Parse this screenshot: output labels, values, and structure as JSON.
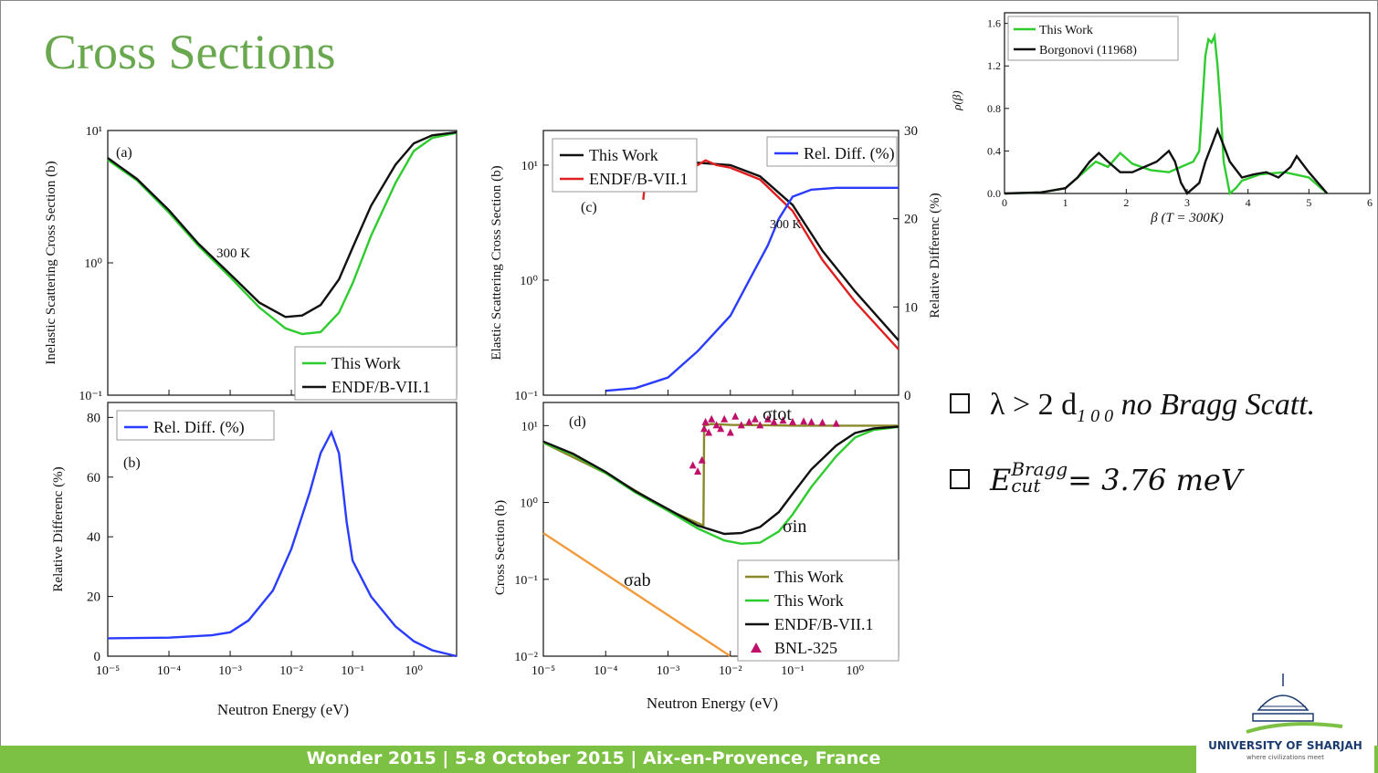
{
  "slide": {
    "title": "Cross Sections",
    "footer": "Wonder 2015 | 5-8 October 2015 | Aix-en-Provence, France",
    "logo_name": "UNIVERSITY OF SHARJAH",
    "logo_tagline": "where civilizations meet",
    "bullet_1": "λ > 2 d",
    "bullet_1_sub": "1 0 0",
    "bullet_1_tail": " no Bragg Scatt.",
    "bullet_2_E": "E",
    "bullet_2_sup": "Bragg",
    "bullet_2_sub": "cut",
    "bullet_2_tail": "= 3.76 meV",
    "colors": {
      "title": "#6aa84f",
      "footer": "#7cc144",
      "green": "#2ecc2e",
      "black": "#111111",
      "red": "#e02020",
      "blue": "#2a3cff",
      "olive": "#8a8a2a",
      "orange": "#f39a3d",
      "magenta": "#c0106a"
    }
  },
  "chart_data": [
    {
      "id": "a",
      "type": "line",
      "panel_label": "(a)",
      "ylabel": "Inelastic Scattering Cross Section (b)",
      "xscale": "log",
      "yscale": "log",
      "xlim": [
        1e-05,
        5
      ],
      "ylim": [
        0.1,
        10
      ],
      "x_ticks": [
        "10⁻⁵",
        "10⁻⁴",
        "10⁻³",
        "10⁻²",
        "10⁻¹",
        "10⁰"
      ],
      "y_ticks": [
        "10⁻¹",
        "10⁰",
        "10¹"
      ],
      "annotation": "300 K",
      "legend": "bottom-right",
      "series": [
        {
          "name": "This Work",
          "color": "#2ecc2e",
          "x": [
            1e-05,
            3e-05,
            0.0001,
            0.0003,
            0.001,
            0.003,
            0.008,
            0.015,
            0.03,
            0.06,
            0.1,
            0.2,
            0.5,
            1,
            2,
            5
          ],
          "y": [
            6,
            4.2,
            2.4,
            1.35,
            0.78,
            0.46,
            0.32,
            0.29,
            0.3,
            0.42,
            0.7,
            1.6,
            4,
            7,
            8.8,
            9.6
          ]
        },
        {
          "name": "ENDF/B-VII.1",
          "color": "#111111",
          "x": [
            1e-05,
            3e-05,
            0.0001,
            0.0003,
            0.001,
            0.003,
            0.008,
            0.015,
            0.03,
            0.06,
            0.1,
            0.2,
            0.5,
            1,
            2,
            5
          ],
          "y": [
            6.2,
            4.3,
            2.5,
            1.4,
            0.82,
            0.5,
            0.39,
            0.4,
            0.48,
            0.75,
            1.3,
            2.7,
            5.5,
            8,
            9.2,
            9.7
          ]
        }
      ]
    },
    {
      "id": "b",
      "type": "line",
      "panel_label": "(b)",
      "xlabel": "Neutron Energy (eV)",
      "ylabel": "Relative Differenc (%)",
      "xscale": "log",
      "xlim": [
        1e-05,
        5
      ],
      "ylim": [
        0,
        85
      ],
      "x_ticks": [
        "10⁻⁵",
        "10⁻⁴",
        "10⁻³",
        "10⁻²",
        "10⁻¹",
        "10⁰"
      ],
      "y_ticks": [
        "0",
        "20",
        "40",
        "60",
        "80"
      ],
      "legend": "top-left",
      "series": [
        {
          "name": "Rel. Diff. (%)",
          "color": "#2a3cff",
          "x": [
            1e-05,
            0.0001,
            0.0005,
            0.001,
            0.002,
            0.005,
            0.01,
            0.02,
            0.03,
            0.045,
            0.06,
            0.08,
            0.1,
            0.2,
            0.5,
            1,
            2,
            5
          ],
          "y": [
            6,
            6.2,
            7,
            8,
            12,
            22,
            36,
            55,
            68,
            75,
            68,
            45,
            32,
            20,
            10,
            5,
            2,
            0
          ]
        }
      ]
    },
    {
      "id": "c",
      "type": "line",
      "panel_label": "(c)",
      "ylabel": "Elastic Scattering Cross Section (b)",
      "y2label": "Relative Differenc (%)",
      "xscale": "log",
      "yscale": "log",
      "xlim": [
        1e-05,
        5
      ],
      "ylim": [
        0.1,
        20
      ],
      "y2lim": [
        0,
        30
      ],
      "y_ticks": [
        "10⁻¹",
        "10⁰",
        "10¹"
      ],
      "y2_ticks": [
        "0",
        "10",
        "20",
        "30"
      ],
      "annotation": "300 K",
      "legend": "top-left",
      "legend2": "top-right",
      "series": [
        {
          "name": "This Work",
          "color": "#111111",
          "x": [
            0.001,
            0.003,
            0.01,
            0.03,
            0.1,
            0.3,
            1,
            5
          ],
          "y": [
            10.2,
            10.5,
            10,
            8,
            4.5,
            1.8,
            0.8,
            0.3
          ]
        },
        {
          "name": "ENDF/B-VII.1",
          "color": "#e02020",
          "x": [
            0.0004,
            0.00045,
            0.0005,
            0.00055,
            0.0006,
            0.0007,
            0.0008,
            0.0009,
            0.001,
            0.0012,
            0.0014,
            0.0016,
            0.002,
            0.0025,
            0.003,
            0.004,
            0.006,
            0.01,
            0.03,
            0.1,
            0.3,
            1,
            5
          ],
          "y": [
            5,
            9,
            6,
            10,
            7,
            11,
            8,
            12,
            9,
            10,
            8,
            12,
            9,
            11,
            10,
            11,
            10,
            9.5,
            7.5,
            4,
            1.5,
            0.65,
            0.25
          ]
        },
        {
          "name": "Rel. Diff. (%)",
          "axis": "right",
          "color": "#2a3cff",
          "x": [
            0.0001,
            0.0003,
            0.001,
            0.003,
            0.01,
            0.02,
            0.04,
            0.06,
            0.1,
            0.2,
            0.5,
            1,
            5
          ],
          "y": [
            0.5,
            0.8,
            2,
            5,
            9,
            13,
            17,
            20,
            22.5,
            23.3,
            23.5,
            23.5,
            23.5
          ]
        }
      ]
    },
    {
      "id": "d",
      "type": "line",
      "panel_label": "(d)",
      "xlabel": "Neutron Energy (eV)",
      "ylabel": "Cross Section (b)",
      "xscale": "log",
      "yscale": "log",
      "xlim": [
        1e-05,
        5
      ],
      "ylim": [
        0.01,
        20
      ],
      "x_ticks": [
        "10⁻⁵",
        "10⁻⁴",
        "10⁻³",
        "10⁻²",
        "10⁻¹",
        "10⁰"
      ],
      "y_ticks": [
        "10⁻²",
        "10⁻¹",
        "10⁰",
        "10¹"
      ],
      "labels": [
        "σtot",
        "σin",
        "σab"
      ],
      "legend": "bottom-right",
      "series": [
        {
          "name": "This Work",
          "color": "#8a8a2a",
          "x": [
            1e-05,
            0.0001,
            0.001,
            0.0037,
            0.0038,
            0.005,
            0.01,
            0.05,
            0.1,
            0.5,
            1,
            5
          ],
          "y": [
            6,
            2.4,
            0.8,
            0.5,
            10,
            10.5,
            10.2,
            10.1,
            10,
            10,
            10,
            10
          ]
        },
        {
          "name": "This Work",
          "color": "#2ecc2e",
          "x": [
            1e-05,
            3e-05,
            0.0001,
            0.0003,
            0.001,
            0.003,
            0.008,
            0.015,
            0.03,
            0.06,
            0.1,
            0.2,
            0.5,
            1,
            2,
            5
          ],
          "y": [
            6,
            4.2,
            2.4,
            1.35,
            0.78,
            0.46,
            0.32,
            0.29,
            0.3,
            0.42,
            0.7,
            1.6,
            4,
            7,
            8.8,
            9.6
          ]
        },
        {
          "name": "ENDF/B-VII.1",
          "color": "#111111",
          "x": [
            1e-05,
            3e-05,
            0.0001,
            0.0003,
            0.001,
            0.003,
            0.008,
            0.015,
            0.03,
            0.06,
            0.1,
            0.2,
            0.5,
            1,
            2,
            5
          ],
          "y": [
            6.2,
            4.3,
            2.5,
            1.4,
            0.82,
            0.5,
            0.39,
            0.4,
            0.48,
            0.75,
            1.3,
            2.7,
            5.5,
            8,
            9.2,
            9.7
          ]
        },
        {
          "name": "σab",
          "color": "#f39a3d",
          "x": [
            1e-05,
            0.01
          ],
          "y": [
            0.4,
            0.01
          ]
        },
        {
          "name": "BNL-325",
          "color": "#c0106a",
          "marker": "triangle",
          "x": [
            0.0025,
            0.003,
            0.0035,
            0.0038,
            0.004,
            0.0045,
            0.005,
            0.006,
            0.007,
            0.008,
            0.01,
            0.012,
            0.015,
            0.02,
            0.025,
            0.03,
            0.04,
            0.05,
            0.07,
            0.1,
            0.15,
            0.2,
            0.3,
            0.5
          ],
          "y": [
            3,
            2.5,
            3.5,
            9,
            11,
            8,
            12,
            10,
            9,
            12,
            8,
            13,
            10,
            11,
            12,
            10,
            12,
            11,
            11.5,
            11,
            11.2,
            11,
            10.8,
            10.5
          ]
        }
      ]
    },
    {
      "id": "inset",
      "type": "line",
      "xlabel": "β (T = 300K)",
      "ylabel": "ρ(β)",
      "xlim": [
        0,
        6
      ],
      "ylim": [
        0,
        1.7
      ],
      "x_ticks": [
        "0",
        "1",
        "2",
        "3",
        "4",
        "5",
        "6"
      ],
      "y_ticks": [
        "0.0",
        "0.4",
        "0.8",
        "1.2",
        "1.6"
      ],
      "legend": "top-left",
      "series": [
        {
          "name": "This Work",
          "color": "#2ecc2e",
          "x": [
            0,
            0.6,
            1,
            1.3,
            1.5,
            1.7,
            1.9,
            2.1,
            2.4,
            2.7,
            2.9,
            3.1,
            3.2,
            3.3,
            3.35,
            3.4,
            3.45,
            3.5,
            3.55,
            3.6,
            3.7,
            3.8,
            3.9,
            4.2,
            4.6,
            5,
            5.3
          ],
          "y": [
            0,
            0.01,
            0.05,
            0.2,
            0.3,
            0.25,
            0.38,
            0.28,
            0.22,
            0.2,
            0.25,
            0.3,
            0.4,
            1.3,
            1.45,
            1.42,
            1.48,
            1.2,
            0.8,
            0.3,
            0,
            0.05,
            0.12,
            0.18,
            0.2,
            0.15,
            0
          ]
        },
        {
          "name": "Borgonovi (11968)",
          "color": "#111111",
          "x": [
            0,
            0.6,
            1,
            1.2,
            1.4,
            1.55,
            1.7,
            1.9,
            2.1,
            2.3,
            2.5,
            2.7,
            2.8,
            2.9,
            3.0,
            3.1,
            3.2,
            3.3,
            3.4,
            3.5,
            3.6,
            3.7,
            3.9,
            4.1,
            4.3,
            4.5,
            4.7,
            4.8,
            5,
            5.3
          ],
          "y": [
            0,
            0.01,
            0.05,
            0.15,
            0.3,
            0.38,
            0.3,
            0.2,
            0.2,
            0.25,
            0.3,
            0.4,
            0.3,
            0.1,
            0,
            0.05,
            0.1,
            0.3,
            0.45,
            0.6,
            0.45,
            0.3,
            0.15,
            0.18,
            0.2,
            0.15,
            0.25,
            0.35,
            0.2,
            0
          ]
        }
      ]
    }
  ]
}
